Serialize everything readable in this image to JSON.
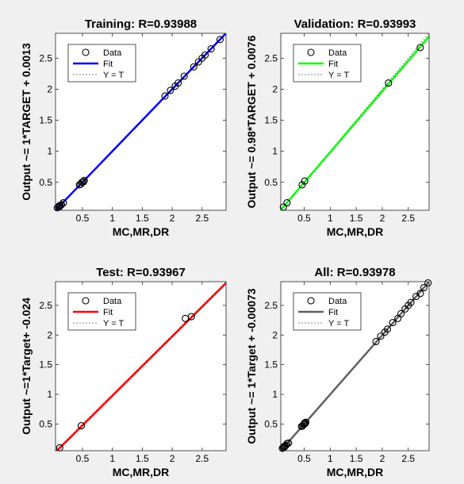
{
  "chart_data": [
    {
      "type": "scatter",
      "title": "Training: R=0.93988",
      "xlabel": "MC,MR,DR",
      "ylabel": "Output ~= 1*TARGET + 0.0013",
      "xlim": [
        0.05,
        2.9
      ],
      "ylim": [
        0.05,
        2.9
      ],
      "xticks": [
        "0.5",
        "1",
        "1.5",
        "2",
        "2.5"
      ],
      "yticks": [
        "0.5",
        "1",
        "1.5",
        "2",
        "2.5"
      ],
      "legend": {
        "position": "top-left",
        "entries": [
          "Data",
          "Fit",
          "Y = T"
        ]
      },
      "fit_color": "#0000ff",
      "fit_line": {
        "slope": 1,
        "intercept": 0.0013
      },
      "points": [
        [
          0.08,
          0.09
        ],
        [
          0.1,
          0.1
        ],
        [
          0.11,
          0.12
        ],
        [
          0.12,
          0.11
        ],
        [
          0.13,
          0.13
        ],
        [
          0.15,
          0.14
        ],
        [
          0.18,
          0.17
        ],
        [
          0.45,
          0.46
        ],
        [
          0.47,
          0.47
        ],
        [
          0.49,
          0.5
        ],
        [
          0.5,
          0.5
        ],
        [
          0.52,
          0.51
        ],
        [
          0.53,
          0.53
        ],
        [
          1.88,
          1.89
        ],
        [
          1.97,
          1.98
        ],
        [
          2.05,
          2.05
        ],
        [
          2.1,
          2.1
        ],
        [
          2.2,
          2.21
        ],
        [
          2.36,
          2.36
        ],
        [
          2.44,
          2.44
        ],
        [
          2.5,
          2.5
        ],
        [
          2.55,
          2.55
        ],
        [
          2.65,
          2.65
        ],
        [
          2.8,
          2.8
        ]
      ]
    },
    {
      "type": "scatter",
      "title": "Validation: R=0.93993",
      "xlabel": "MC,MR,DR",
      "ylabel": "Output ~= 0.98*TARGET + 0.0076",
      "xlim": [
        0.05,
        2.9
      ],
      "ylim": [
        0.05,
        2.9
      ],
      "xticks": [
        "0.5",
        "1",
        "1.5",
        "2",
        "2.5"
      ],
      "yticks": [
        "0.5",
        "1",
        "1.5",
        "2",
        "2.5"
      ],
      "legend": {
        "position": "top-left",
        "entries": [
          "Data",
          "Fit",
          "Y = T"
        ]
      },
      "fit_color": "#00ff00",
      "fit_line": {
        "slope": 0.98,
        "intercept": 0.0076
      },
      "points": [
        [
          0.1,
          0.1
        ],
        [
          0.17,
          0.17
        ],
        [
          0.46,
          0.46
        ],
        [
          0.51,
          0.52
        ],
        [
          2.12,
          2.1
        ],
        [
          2.73,
          2.67
        ]
      ]
    },
    {
      "type": "scatter",
      "title": "Test: R=0.93967",
      "xlabel": "MC,MR,DR",
      "ylabel": "Output ~=1*Target+ -0.024",
      "xlim": [
        0.05,
        2.9
      ],
      "ylim": [
        0.05,
        2.9
      ],
      "xticks": [
        "0.5",
        "1",
        "1.5",
        "2",
        "2.5"
      ],
      "yticks": [
        "0.5",
        "1",
        "1.5",
        "2",
        "2.5"
      ],
      "legend": {
        "position": "top-left",
        "entries": [
          "Data",
          "Fit",
          "Y = T"
        ]
      },
      "fit_color": "#ff0000",
      "fit_line": {
        "slope": 1,
        "intercept": -0.024
      },
      "points": [
        [
          0.12,
          0.1
        ],
        [
          0.48,
          0.47
        ],
        [
          2.22,
          2.28
        ],
        [
          2.32,
          2.31
        ]
      ]
    },
    {
      "type": "scatter",
      "title": "All: R=0.93978",
      "xlabel": "MC,MR,DR",
      "ylabel": "Output ~= 1*Target + -0.00073",
      "xlim": [
        0.05,
        2.9
      ],
      "ylim": [
        0.05,
        2.9
      ],
      "xticks": [
        "0.5",
        "1",
        "1.5",
        "2",
        "2.5"
      ],
      "yticks": [
        "0.5",
        "1",
        "1.5",
        "2",
        "2.5"
      ],
      "legend": {
        "position": "top-left",
        "entries": [
          "Data",
          "Fit",
          "Y = T"
        ]
      },
      "fit_color": "#606060",
      "fit_line": {
        "slope": 1,
        "intercept": -0.00073
      },
      "points": [
        [
          0.08,
          0.09
        ],
        [
          0.1,
          0.1
        ],
        [
          0.11,
          0.12
        ],
        [
          0.12,
          0.11
        ],
        [
          0.13,
          0.13
        ],
        [
          0.15,
          0.14
        ],
        [
          0.17,
          0.17
        ],
        [
          0.2,
          0.18
        ],
        [
          0.45,
          0.46
        ],
        [
          0.47,
          0.47
        ],
        [
          0.49,
          0.49
        ],
        [
          0.5,
          0.5
        ],
        [
          0.51,
          0.52
        ],
        [
          0.52,
          0.51
        ],
        [
          0.53,
          0.53
        ],
        [
          1.88,
          1.89
        ],
        [
          1.97,
          1.98
        ],
        [
          2.05,
          2.05
        ],
        [
          2.1,
          2.1
        ],
        [
          2.2,
          2.21
        ],
        [
          2.3,
          2.28
        ],
        [
          2.36,
          2.36
        ],
        [
          2.44,
          2.44
        ],
        [
          2.5,
          2.5
        ],
        [
          2.55,
          2.55
        ],
        [
          2.65,
          2.65
        ],
        [
          2.73,
          2.7
        ],
        [
          2.8,
          2.8
        ],
        [
          2.88,
          2.88
        ]
      ]
    }
  ]
}
